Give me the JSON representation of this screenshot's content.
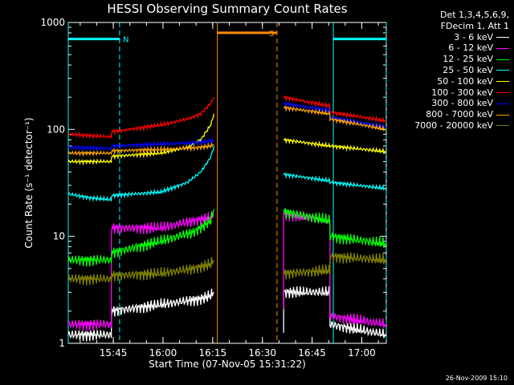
{
  "chart_data": {
    "type": "line",
    "title": "HESSI Observing Summary Count Rates",
    "xlabel": "Start Time (07-Nov-05 15:31:22)",
    "ylabel": "Count Rate (s⁻¹ detector⁻¹)",
    "yscale": "log",
    "ylim": [
      1,
      1000
    ],
    "xlim_minutes": [
      0,
      96
    ],
    "x_ticks": [
      {
        "t": 13.6,
        "label": "15:45"
      },
      {
        "t": 28.6,
        "label": "16:00"
      },
      {
        "t": 43.6,
        "label": "16:15"
      },
      {
        "t": 58.6,
        "label": "16:30"
      },
      {
        "t": 73.6,
        "label": "16:45"
      },
      {
        "t": 88.6,
        "label": "17:00"
      }
    ],
    "y_ticks": [
      {
        "v": 1,
        "label": "1"
      },
      {
        "v": 10,
        "label": "10"
      },
      {
        "v": 100,
        "label": "100"
      },
      {
        "v": 1000,
        "label": "1000"
      }
    ],
    "legend_header": [
      "Det 1,3,4,5,6,9,",
      "FDecim 1, Att 1"
    ],
    "series": [
      {
        "name": "3 - 6 keV",
        "color": "#ffffff",
        "x": [
          0,
          13,
          13.01,
          28,
          40,
          43,
          44
        ],
        "y": [
          1.2,
          1.2,
          2.0,
          2.3,
          2.6,
          2.8,
          3.0
        ],
        "x2": [
          65,
          65.01,
          79,
          79.01,
          96
        ],
        "y2": [
          1.2,
          3.0,
          3.0,
          1.5,
          1.2
        ]
      },
      {
        "name": "6 - 12 keV",
        "color": "#ff00ff",
        "x": [
          0,
          13,
          13.01,
          28,
          38,
          43,
          44
        ],
        "y": [
          1.5,
          1.5,
          12,
          12,
          14,
          15,
          16
        ],
        "x2": [
          65,
          65.01,
          79,
          79.01,
          96
        ],
        "y2": [
          2.0,
          16,
          14,
          1.8,
          1.5
        ]
      },
      {
        "name": "12 - 25 keV",
        "color": "#00ff00",
        "x": [
          0,
          13,
          13.01,
          28,
          38,
          43,
          44
        ],
        "y": [
          6,
          6,
          7,
          9,
          11,
          14,
          18
        ],
        "x2": [
          65,
          79,
          79.01,
          96
        ],
        "y2": [
          17,
          14,
          10,
          8.5
        ]
      },
      {
        "name": "25 - 50 keV",
        "color": "#00ffff",
        "x": [
          0,
          6,
          13,
          13.01,
          28,
          36,
          40,
          43,
          44
        ],
        "y": [
          25,
          23,
          22,
          24,
          26,
          32,
          40,
          55,
          70
        ],
        "x2": [
          65,
          79,
          79.01,
          96
        ],
        "y2": [
          38,
          33,
          32,
          28
        ]
      },
      {
        "name": "50 - 100 keV",
        "color": "#ffff00",
        "x": [
          0,
          13,
          13.01,
          28,
          36,
          40,
          43,
          44
        ],
        "y": [
          50,
          50,
          56,
          60,
          68,
          80,
          110,
          140
        ],
        "x2": [
          65,
          79,
          79.01,
          96
        ],
        "y2": [
          80,
          70,
          70,
          62
        ]
      },
      {
        "name": "100 - 300 keV",
        "color": "#ff0000",
        "x": [
          0,
          13,
          13.01,
          28,
          36,
          40,
          43,
          44
        ],
        "y": [
          90,
          85,
          95,
          110,
          125,
          140,
          175,
          200
        ],
        "x2": [
          65,
          79,
          79.01,
          96
        ],
        "y2": [
          200,
          165,
          145,
          120
        ]
      },
      {
        "name": "300 - 800 keV",
        "color": "#0000ff",
        "x": [
          0,
          13,
          13.01,
          28,
          38,
          43,
          44
        ],
        "y": [
          68,
          66,
          70,
          73,
          75,
          78,
          80
        ],
        "x2": [
          65,
          79,
          79.01,
          96
        ],
        "y2": [
          175,
          150,
          130,
          105
        ]
      },
      {
        "name": "800 - 7000 keV",
        "color": "#ffa500",
        "x": [
          0,
          13,
          13.01,
          28,
          38,
          43,
          44
        ],
        "y": [
          60,
          60,
          63,
          65,
          67,
          70,
          72
        ],
        "x2": [
          65,
          79,
          79.01,
          96
        ],
        "y2": [
          160,
          140,
          125,
          100
        ]
      },
      {
        "name": "7000 - 20000 keV",
        "color": "#808000",
        "x": [
          0,
          13,
          13.01,
          28,
          38,
          43,
          44
        ],
        "y": [
          4,
          4,
          4.3,
          4.5,
          5,
          5.5,
          6
        ],
        "x2": [
          65,
          79,
          79.01,
          96
        ],
        "y2": [
          4.5,
          4.8,
          6.5,
          6
        ]
      }
    ],
    "flags": [
      {
        "label": "N",
        "color": "#00ffff",
        "level": 700,
        "segments": [
          [
            0,
            15.5
          ],
          [
            80,
            96
          ]
        ],
        "solid_lines": [
          0,
          80
        ],
        "dashed_lines": [
          15.5,
          96
        ]
      },
      {
        "label": "S",
        "color": "#ff8c00",
        "level": 800,
        "segments": [
          [
            45,
            63
          ]
        ],
        "solid_lines": [
          45
        ],
        "dashed_lines": [
          63
        ]
      }
    ],
    "gap": [
      45,
      65
    ]
  },
  "footer": {
    "timestamp": "26-Nov-2009 15:10"
  }
}
